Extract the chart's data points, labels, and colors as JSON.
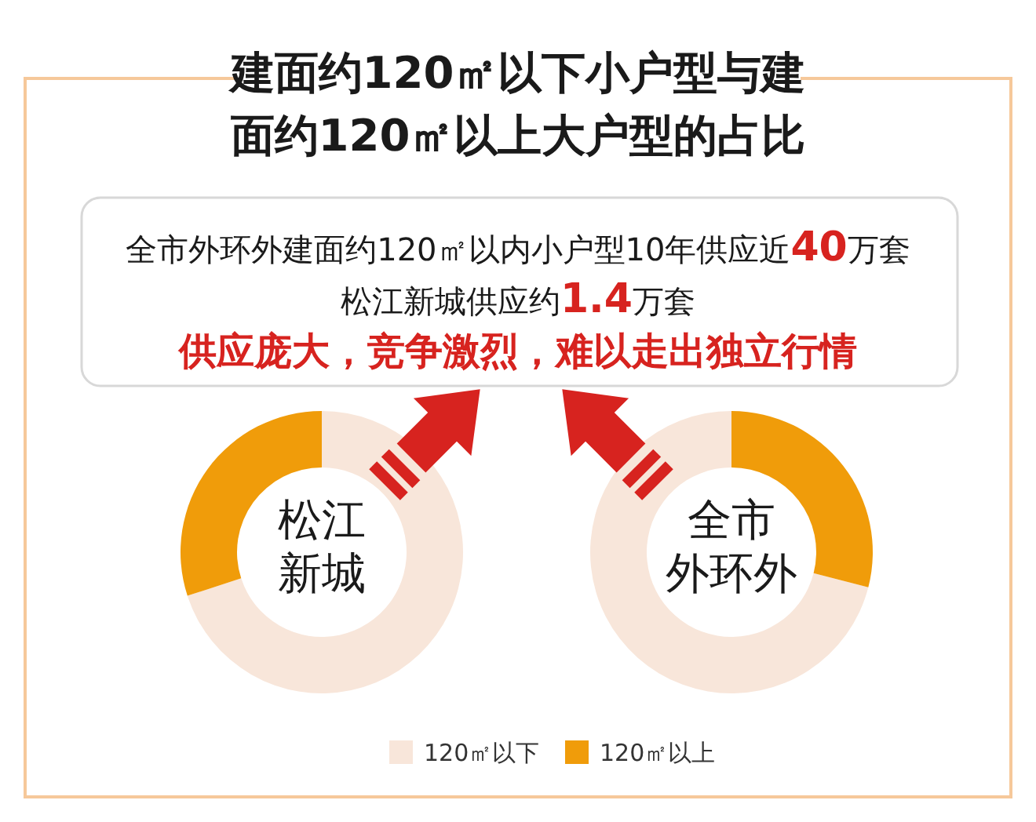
{
  "chart_data": [
    {
      "type": "other",
      "title": "建面约120㎡以下小户型与建面约120㎡以上大户型的占比",
      "annotations": [
        "全市外环外建面约120㎡以内小户型10年供应近40万套",
        "松江新城供应约1.4万套",
        "供应庞大，竞争激烈，难以走出独立行情"
      ]
    },
    {
      "type": "donut",
      "title": "松江新城",
      "values": [
        70,
        30
      ],
      "colors": [
        "#f8e6da",
        "#f09c0a"
      ]
    },
    {
      "type": "donut",
      "title": "全市外环外",
      "categories": [
        "120㎡以下",
        "120㎡以上"
      ],
      "values": [
        71,
        29
      ],
      "colors": [
        "#f8e6da",
        "#f09c0a"
      ],
      "legend": "bottom"
    }
  ]
}
